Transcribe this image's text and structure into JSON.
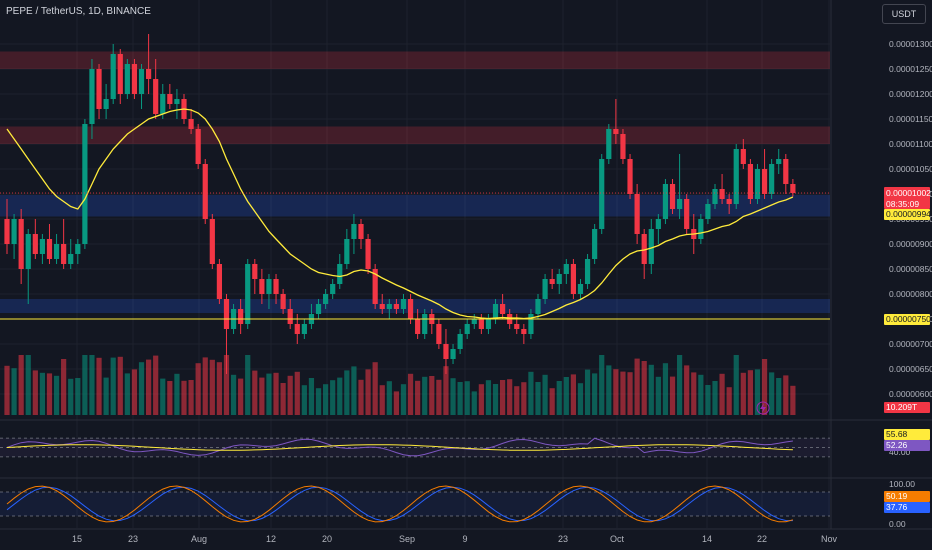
{
  "header": {
    "symbol": "PEPE",
    "quote": "TetherUS",
    "interval": "1D",
    "exchange": "BINANCE",
    "title": "PEPE / TetherUS, 1D, BINANCE"
  },
  "currency_button": {
    "label": "USDT"
  },
  "price_axis": {
    "labels": [
      "0.00001300",
      "0.00001250",
      "0.00001200",
      "0.00001150",
      "0.00001100",
      "0.00001050",
      "0.00001000",
      "0.00000950",
      "0.00000900",
      "0.00000850",
      "0.00000800",
      "0.00000750",
      "0.00000700",
      "0.00000650",
      "0.00000600"
    ]
  },
  "badges": {
    "last_price": {
      "text": "0.00001002",
      "color": "#f23645"
    },
    "countdown": {
      "text": "08:35:09",
      "color": "#f23645"
    },
    "ma_value": {
      "text": "0.00000994",
      "color": "#ffeb3b"
    },
    "hline_value": {
      "text": "0.00000750",
      "color": "#ffeb3b"
    },
    "volume": {
      "text": "10.209T",
      "color": "#f23645"
    },
    "rsi_value": {
      "text": "55.68",
      "color": "#ffeb3b"
    },
    "rsi_ma_value": {
      "text": "52.26",
      "color": "#7e57c2"
    },
    "stoch_k": {
      "text": "50.19",
      "color": "#f57c00"
    },
    "stoch_d": {
      "text": "37.76",
      "color": "#2962ff"
    }
  },
  "rsi_axis": {
    "labels": [
      "80.00",
      "40.00"
    ]
  },
  "stoch_axis": {
    "labels": [
      "100.00",
      "50.00",
      "0.00"
    ]
  },
  "x_axis": {
    "labels": [
      "15",
      "23",
      "Aug",
      "12",
      "20",
      "Sep",
      "9",
      "23",
      "Oct",
      "14",
      "22",
      "Nov"
    ]
  },
  "chart_data": {
    "type": "candlestick",
    "zones": [
      {
        "type": "resistance",
        "from": 1.25e-05,
        "to": 1.285e-05,
        "color": "#f23645"
      },
      {
        "type": "resistance",
        "from": 1.1e-05,
        "to": 1.135e-05,
        "color": "#f23645"
      },
      {
        "type": "support",
        "from": 9.55e-06,
        "to": 9.98e-06,
        "color": "#2962ff"
      },
      {
        "type": "support",
        "from": 7.62e-06,
        "to": 7.9e-06,
        "color": "#2962ff"
      }
    ],
    "horizontal_line": {
      "value": 7.5e-06,
      "color": "#ffeb3b"
    },
    "last_price_line": {
      "value": 1.002e-05,
      "color": "#f23645"
    },
    "candles": [
      [
        9.5e-06,
        9.9e-06,
        8.8e-06,
        9e-06
      ],
      [
        9e-06,
        9.6e-06,
        8.7e-06,
        9.5e-06
      ],
      [
        9.5e-06,
        9.7e-06,
        8.2e-06,
        8.5e-06
      ],
      [
        8.5e-06,
        9.3e-06,
        7.8e-06,
        9.2e-06
      ],
      [
        9.2e-06,
        9.5e-06,
        8.7e-06,
        8.8e-06
      ],
      [
        8.8e-06,
        9.2e-06,
        8.6e-06,
        9.1e-06
      ],
      [
        9.1e-06,
        9.4e-06,
        8.6e-06,
        8.7e-06
      ],
      [
        8.7e-06,
        9.2e-06,
        8.6e-06,
        9e-06
      ],
      [
        9e-06,
        9.5e-06,
        8.5e-06,
        8.6e-06
      ],
      [
        8.6e-06,
        9.1e-06,
        8.5e-06,
        8.8e-06
      ],
      [
        8.8e-06,
        9.1e-06,
        8.6e-06,
        9e-06
      ],
      [
        9e-06,
        1.15e-05,
        8.9e-06,
        1.14e-05
      ],
      [
        1.14e-05,
        1.27e-05,
        1.11e-05,
        1.25e-05
      ],
      [
        1.25e-05,
        1.26e-05,
        1.15e-05,
        1.17e-05
      ],
      [
        1.17e-05,
        1.22e-05,
        1.15e-05,
        1.19e-05
      ],
      [
        1.19e-05,
        1.3e-05,
        1.18e-05,
        1.28e-05
      ],
      [
        1.28e-05,
        1.29e-05,
        1.18e-05,
        1.2e-05
      ],
      [
        1.2e-05,
        1.27e-05,
        1.19e-05,
        1.26e-05
      ],
      [
        1.26e-05,
        1.27e-05,
        1.19e-05,
        1.2e-05
      ],
      [
        1.2e-05,
        1.26e-05,
        1.17e-05,
        1.25e-05
      ],
      [
        1.25e-05,
        1.32e-05,
        1.2e-05,
        1.23e-05
      ],
      [
        1.23e-05,
        1.27e-05,
        1.15e-05,
        1.16e-05
      ],
      [
        1.16e-05,
        1.22e-05,
        1.15e-05,
        1.2e-05
      ],
      [
        1.2e-05,
        1.22e-05,
        1.17e-05,
        1.18e-05
      ],
      [
        1.18e-05,
        1.21e-05,
        1.15e-05,
        1.19e-05
      ],
      [
        1.19e-05,
        1.2e-05,
        1.14e-05,
        1.15e-05
      ],
      [
        1.15e-05,
        1.17e-05,
        1.12e-05,
        1.13e-05
      ],
      [
        1.13e-05,
        1.14e-05,
        1.05e-05,
        1.06e-05
      ],
      [
        1.06e-05,
        1.07e-05,
        9.4e-06,
        9.5e-06
      ],
      [
        9.5e-06,
        9.6e-06,
        8.5e-06,
        8.6e-06
      ],
      [
        8.6e-06,
        8.7e-06,
        7.8e-06,
        7.9e-06
      ],
      [
        7.9e-06,
        8e-06,
        6.4e-06,
        7.3e-06
      ],
      [
        7.3e-06,
        7.8e-06,
        7.2e-06,
        7.7e-06
      ],
      [
        7.7e-06,
        7.9e-06,
        7.2e-06,
        7.4e-06
      ],
      [
        7.4e-06,
        8.7e-06,
        7.3e-06,
        8.6e-06
      ],
      [
        8.6e-06,
        8.7e-06,
        8e-06,
        8.3e-06
      ],
      [
        8.3e-06,
        8.5e-06,
        7.8e-06,
        8e-06
      ],
      [
        8e-06,
        8.4e-06,
        7.7e-06,
        8.3e-06
      ],
      [
        8.3e-06,
        8.4e-06,
        7.8e-06,
        8e-06
      ],
      [
        8e-06,
        8.1e-06,
        7.6e-06,
        7.7e-06
      ],
      [
        7.7e-06,
        7.9e-06,
        7.3e-06,
        7.4e-06
      ],
      [
        7.4e-06,
        7.6e-06,
        7e-06,
        7.2e-06
      ],
      [
        7.2e-06,
        7.5e-06,
        7.1e-06,
        7.4e-06
      ],
      [
        7.4e-06,
        7.8e-06,
        7.3e-06,
        7.6e-06
      ],
      [
        7.6e-06,
        7.9e-06,
        7.5e-06,
        7.8e-06
      ],
      [
        7.8e-06,
        8.1e-06,
        7.7e-06,
        8e-06
      ],
      [
        8e-06,
        8.3e-06,
        7.9e-06,
        8.2e-06
      ],
      [
        8.2e-06,
        8.8e-06,
        8.1e-06,
        8.6e-06
      ],
      [
        8.6e-06,
        9.3e-06,
        8.5e-06,
        9.1e-06
      ],
      [
        9.1e-06,
        9.6e-06,
        8.8e-06,
        9.4e-06
      ],
      [
        9.4e-06,
        9.5e-06,
        8.9e-06,
        9.1e-06
      ],
      [
        9.1e-06,
        9.2e-06,
        8.4e-06,
        8.5e-06
      ],
      [
        8.5e-06,
        8.6e-06,
        7.7e-06,
        7.8e-06
      ],
      [
        7.8e-06,
        8e-06,
        7.6e-06,
        7.7e-06
      ],
      [
        7.7e-06,
        7.9e-06,
        7.5e-06,
        7.8e-06
      ],
      [
        7.8e-06,
        7.9e-06,
        7.6e-06,
        7.7e-06
      ],
      [
        7.7e-06,
        8e-06,
        7.6e-06,
        7.9e-06
      ],
      [
        7.9e-06,
        8e-06,
        7.4e-06,
        7.5e-06
      ],
      [
        7.5e-06,
        7.7e-06,
        7.1e-06,
        7.2e-06
      ],
      [
        7.2e-06,
        7.7e-06,
        7.1e-06,
        7.6e-06
      ],
      [
        7.6e-06,
        7.7e-06,
        7.2e-06,
        7.4e-06
      ],
      [
        7.4e-06,
        7.5e-06,
        6.9e-06,
        7e-06
      ],
      [
        7e-06,
        7.3e-06,
        6.4e-06,
        6.7e-06
      ],
      [
        6.7e-06,
        7e-06,
        6.6e-06,
        6.9e-06
      ],
      [
        6.9e-06,
        7.3e-06,
        6.8e-06,
        7.2e-06
      ],
      [
        7.2e-06,
        7.5e-06,
        7.1e-06,
        7.4e-06
      ],
      [
        7.4e-06,
        7.6e-06,
        7.3e-06,
        7.5e-06
      ],
      [
        7.5e-06,
        7.6e-06,
        7.2e-06,
        7.3e-06
      ],
      [
        7.3e-06,
        7.6e-06,
        7.2e-06,
        7.5e-06
      ],
      [
        7.5e-06,
        7.9e-06,
        7.4e-06,
        7.8e-06
      ],
      [
        7.8e-06,
        8e-06,
        7.5e-06,
        7.6e-06
      ],
      [
        7.6e-06,
        7.7e-06,
        7.3e-06,
        7.4e-06
      ],
      [
        7.4e-06,
        7.6e-06,
        7.2e-06,
        7.3e-06
      ],
      [
        7.3e-06,
        7.4e-06,
        7e-06,
        7.2e-06
      ],
      [
        7.2e-06,
        7.7e-06,
        7.1e-06,
        7.6e-06
      ],
      [
        7.6e-06,
        8e-06,
        7.5e-06,
        7.9e-06
      ],
      [
        7.9e-06,
        8.4e-06,
        7.8e-06,
        8.3e-06
      ],
      [
        8.3e-06,
        8.5e-06,
        8.1e-06,
        8.2e-06
      ],
      [
        8.2e-06,
        8.5e-06,
        8e-06,
        8.4e-06
      ],
      [
        8.4e-06,
        8.7e-06,
        8.2e-06,
        8.6e-06
      ],
      [
        8.6e-06,
        8.7e-06,
        7.9e-06,
        8e-06
      ],
      [
        8e-06,
        8.3e-06,
        7.9e-06,
        8.2e-06
      ],
      [
        8.2e-06,
        8.8e-06,
        8.1e-06,
        8.7e-06
      ],
      [
        8.7e-06,
        9.4e-06,
        8.6e-06,
        9.3e-06
      ],
      [
        9.3e-06,
        1.08e-05,
        9.2e-06,
        1.07e-05
      ],
      [
        1.07e-05,
        1.14e-05,
        1.06e-05,
        1.13e-05
      ],
      [
        1.13e-05,
        1.19e-05,
        1.1e-05,
        1.12e-05
      ],
      [
        1.12e-05,
        1.13e-05,
        1.06e-05,
        1.07e-05
      ],
      [
        1.07e-05,
        1.08e-05,
        9.9e-06,
        1e-05
      ],
      [
        1e-05,
        1.02e-05,
        9e-06,
        9.2e-06
      ],
      [
        9.2e-06,
        9.3e-06,
        8.3e-06,
        8.6e-06
      ],
      [
        8.6e-06,
        9.5e-06,
        8.4e-06,
        9.3e-06
      ],
      [
        9.3e-06,
        9.6e-06,
        9e-06,
        9.5e-06
      ],
      [
        9.5e-06,
        1.03e-05,
        9.4e-06,
        1.02e-05
      ],
      [
        1.02e-05,
        1.03e-05,
        9.6e-06,
        9.7e-06
      ],
      [
        9.7e-06,
        1.08e-05,
        9.5e-06,
        9.9e-06
      ],
      [
        9.9e-06,
        1e-05,
        9.2e-06,
        9.3e-06
      ],
      [
        9.3e-06,
        9.6e-06,
        8.8e-06,
        9.1e-06
      ],
      [
        9.1e-06,
        9.6e-06,
        9e-06,
        9.5e-06
      ],
      [
        9.5e-06,
        9.9e-06,
        9.4e-06,
        9.8e-06
      ],
      [
        9.8e-06,
        1.02e-05,
        9.7e-06,
        1.01e-05
      ],
      [
        1.01e-05,
        1.04e-05,
        9.8e-06,
        9.9e-06
      ],
      [
        9.9e-06,
        1e-05,
        9.6e-06,
        9.8e-06
      ],
      [
        9.8e-06,
        1.1e-05,
        9.7e-06,
        1.09e-05
      ],
      [
        1.09e-05,
        1.11e-05,
        1.05e-05,
        1.06e-05
      ],
      [
        1.06e-05,
        1.07e-05,
        9.8e-06,
        9.9e-06
      ],
      [
        9.9e-06,
        1.06e-05,
        9.8e-06,
        1.05e-05
      ],
      [
        1.05e-05,
        1.09e-05,
        9.9e-06,
        1e-05
      ],
      [
        1e-05,
        1.07e-05,
        9.9e-06,
        1.06e-05
      ],
      [
        1.06e-05,
        1.09e-05,
        1.04e-05,
        1.07e-05
      ],
      [
        1.07e-05,
        1.08e-05,
        1e-05,
        1.02e-05
      ],
      [
        1.02e-05,
        1.03e-05,
        9.95e-06,
        1.002e-05
      ]
    ],
    "ma": [
      1.13e-05,
      1.11e-05,
      1.09e-05,
      1.07e-05,
      1.05e-05,
      1.03e-05,
      1.01e-05,
      9.95e-06,
      9.85e-06,
      9.75e-06,
      9.7e-06,
      9.9e-06,
      1.02e-05,
      1.05e-05,
      1.07e-05,
      1.09e-05,
      1.105e-05,
      1.12e-05,
      1.13e-05,
      1.14e-05,
      1.15e-05,
      1.155e-05,
      1.16e-05,
      1.165e-05,
      1.168e-05,
      1.17e-05,
      1.168e-05,
      1.162e-05,
      1.15e-05,
      1.13e-05,
      1.105e-05,
      1.07e-05,
      1.04e-05,
      1.01e-05,
      9.85e-06,
      9.65e-06,
      9.45e-06,
      9.25e-06,
      9.1e-06,
      8.95e-06,
      8.8e-06,
      8.7e-06,
      8.6e-06,
      8.5e-06,
      8.43e-06,
      8.4e-06,
      8.37e-06,
      8.35e-06,
      8.38e-06,
      8.45e-06,
      8.48e-06,
      8.46e-06,
      8.4e-06,
      8.32e-06,
      8.25e-06,
      8.18e-06,
      8.12e-06,
      8.05e-06,
      7.98e-06,
      7.92e-06,
      7.86e-06,
      7.79e-06,
      7.7e-06,
      7.63e-06,
      7.58e-06,
      7.55e-06,
      7.54e-06,
      7.52e-06,
      7.51e-06,
      7.52e-06,
      7.53e-06,
      7.52e-06,
      7.52e-06,
      7.51e-06,
      7.52e-06,
      7.55e-06,
      7.59e-06,
      7.65e-06,
      7.71e-06,
      7.78e-06,
      7.83e-06,
      7.89e-06,
      7.97e-06,
      8.07e-06,
      8.22e-06,
      8.4e-06,
      8.57e-06,
      8.7e-06,
      8.8e-06,
      8.86e-06,
      8.88e-06,
      8.92e-06,
      8.97e-06,
      9.05e-06,
      9.1e-06,
      9.16e-06,
      9.19e-06,
      9.2e-06,
      9.22e-06,
      9.25e-06,
      9.3e-06,
      9.35e-06,
      9.38e-06,
      9.45e-06,
      9.55e-06,
      9.6e-06,
      9.66e-06,
      9.72e-06,
      9.78e-06,
      9.84e-06,
      9.88e-06,
      9.94e-06
    ]
  }
}
